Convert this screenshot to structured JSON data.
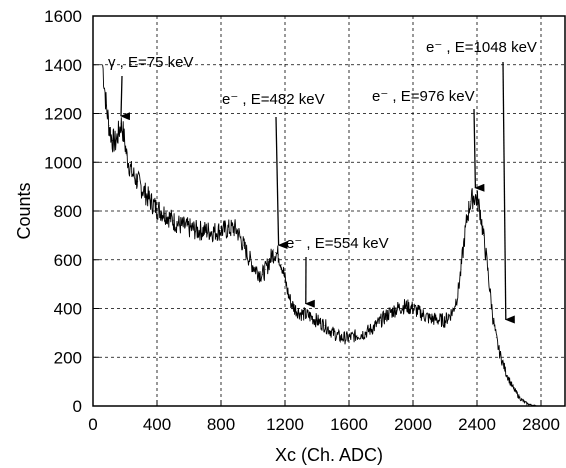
{
  "chart_data": {
    "type": "line",
    "title": "",
    "xlabel": "Xc (Ch. ADC)",
    "ylabel": "Counts",
    "xlim": [
      0,
      2950
    ],
    "ylim": [
      0,
      1600
    ],
    "x_ticks": [
      0,
      400,
      800,
      1200,
      1600,
      2000,
      2400,
      2800
    ],
    "y_ticks": [
      0,
      200,
      400,
      600,
      800,
      1000,
      1200,
      1400,
      1600
    ],
    "grid": true,
    "series": [
      {
        "color": "#000000",
        "x": [
          60,
          80,
          100,
          120,
          140,
          160,
          175,
          190,
          210,
          240,
          280,
          320,
          360,
          400,
          450,
          500,
          550,
          600,
          650,
          700,
          750,
          800,
          850,
          880,
          900,
          920,
          940,
          960,
          980,
          1000,
          1020,
          1040,
          1060,
          1080,
          1100,
          1120,
          1140,
          1160,
          1180,
          1200,
          1220,
          1240,
          1260,
          1280,
          1300,
          1350,
          1400,
          1450,
          1500,
          1550,
          1600,
          1650,
          1700,
          1750,
          1800,
          1850,
          1900,
          1950,
          2000,
          2050,
          2100,
          2150,
          2200,
          2250,
          2280,
          2300,
          2320,
          2340,
          2360,
          2380,
          2400,
          2420,
          2440,
          2460,
          2480,
          2500,
          2520,
          2540,
          2560,
          2580,
          2600,
          2620,
          2640,
          2660,
          2680,
          2700,
          2720,
          2740,
          2760,
          2780,
          2800
        ],
        "y": [
          1400,
          1250,
          1150,
          1090,
          1080,
          1120,
          1160,
          1120,
          1030,
          960,
          920,
          880,
          840,
          810,
          790,
          760,
          740,
          730,
          720,
          720,
          715,
          720,
          725,
          730,
          720,
          690,
          660,
          630,
          600,
          575,
          560,
          545,
          540,
          560,
          590,
          620,
          630,
          620,
          580,
          520,
          460,
          420,
          400,
          390,
          380,
          370,
          350,
          330,
          300,
          280,
          280,
          290,
          300,
          320,
          350,
          380,
          400,
          410,
          400,
          380,
          360,
          355,
          350,
          390,
          460,
          560,
          680,
          780,
          840,
          860,
          850,
          800,
          700,
          600,
          480,
          360,
          280,
          220,
          180,
          140,
          110,
          80,
          60,
          40,
          25,
          15,
          8,
          4,
          2,
          0,
          0
        ]
      }
    ],
    "annotations": [
      {
        "label": "γ , E=75 keV",
        "x": 175,
        "y": 1165
      },
      {
        "label": "e⁻ , E=482 keV",
        "x": 1160,
        "y": 635
      },
      {
        "label": "e⁻ , E=554 keV",
        "x": 1330,
        "y": 395
      },
      {
        "label": "e⁻ , E=976 keV",
        "x": 2390,
        "y": 870
      },
      {
        "label": "e⁻ , E=1048 keV",
        "x": 2580,
        "y": 330
      }
    ]
  }
}
